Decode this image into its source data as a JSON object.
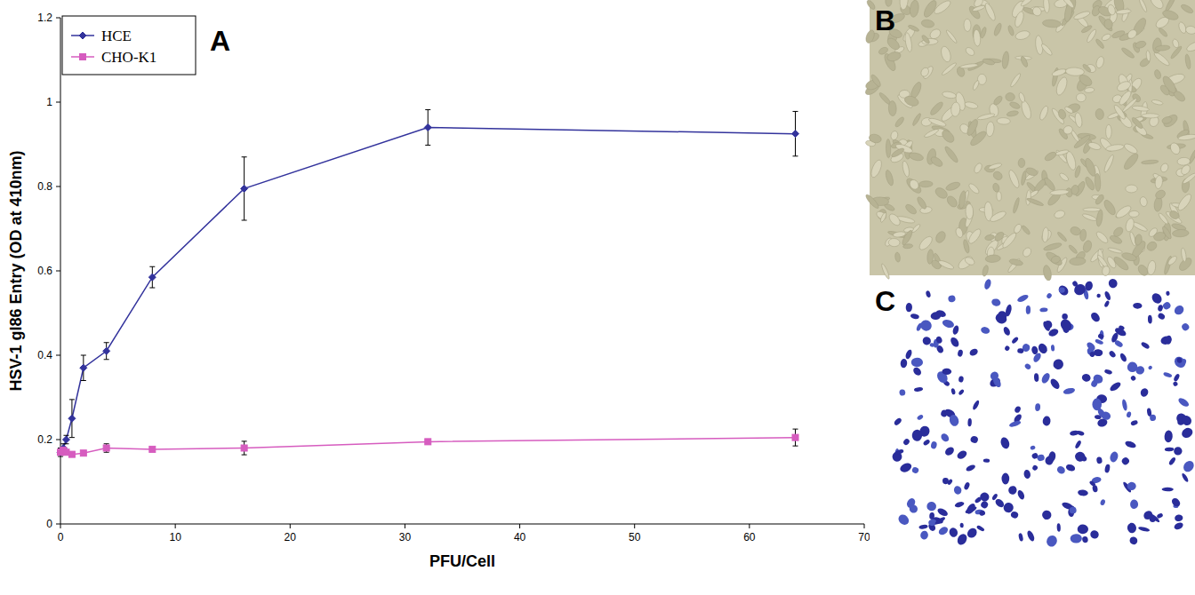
{
  "chart_data": {
    "type": "line",
    "panel": "A",
    "x_label": "PFU/Cell",
    "y_label": "HSV-1 gI86 Entry (OD at 410nm)",
    "xlim": [
      0,
      70
    ],
    "xticks": [
      0,
      10,
      20,
      30,
      40,
      50,
      60,
      70
    ],
    "ylim": [
      0,
      1.2
    ],
    "yticks": [
      0,
      0.2,
      0.4,
      0.6,
      0.8,
      1,
      1.2
    ],
    "grid": false,
    "legend": "upper left",
    "series": [
      {
        "name": "HCE",
        "color": "#33339c",
        "marker": "diamond",
        "line_style": "solid",
        "x": [
          0,
          0.25,
          0.5,
          1,
          2,
          4,
          8,
          16,
          32,
          64
        ],
        "values": [
          0.17,
          0.18,
          0.2,
          0.25,
          0.37,
          0.41,
          0.585,
          0.795,
          0.94,
          0.925
        ],
        "errors": [
          0.01,
          0.01,
          0.01,
          0.045,
          0.03,
          0.02,
          0.025,
          0.075,
          0.042,
          0.053
        ]
      },
      {
        "name": "CHO-K1",
        "color": "#d65cbf",
        "marker": "square",
        "line_style": "solid",
        "x": [
          0,
          0.25,
          0.5,
          1,
          2,
          4,
          8,
          16,
          32,
          64
        ],
        "values": [
          0.17,
          0.175,
          0.17,
          0.165,
          0.168,
          0.18,
          0.177,
          0.18,
          0.195,
          0.205
        ],
        "errors": [
          0.005,
          0.005,
          0.005,
          0.005,
          0.005,
          0.01,
          0.005,
          0.016,
          0.005,
          0.02
        ]
      }
    ]
  },
  "images": [
    {
      "label": "B"
    },
    {
      "label": "C"
    }
  ]
}
